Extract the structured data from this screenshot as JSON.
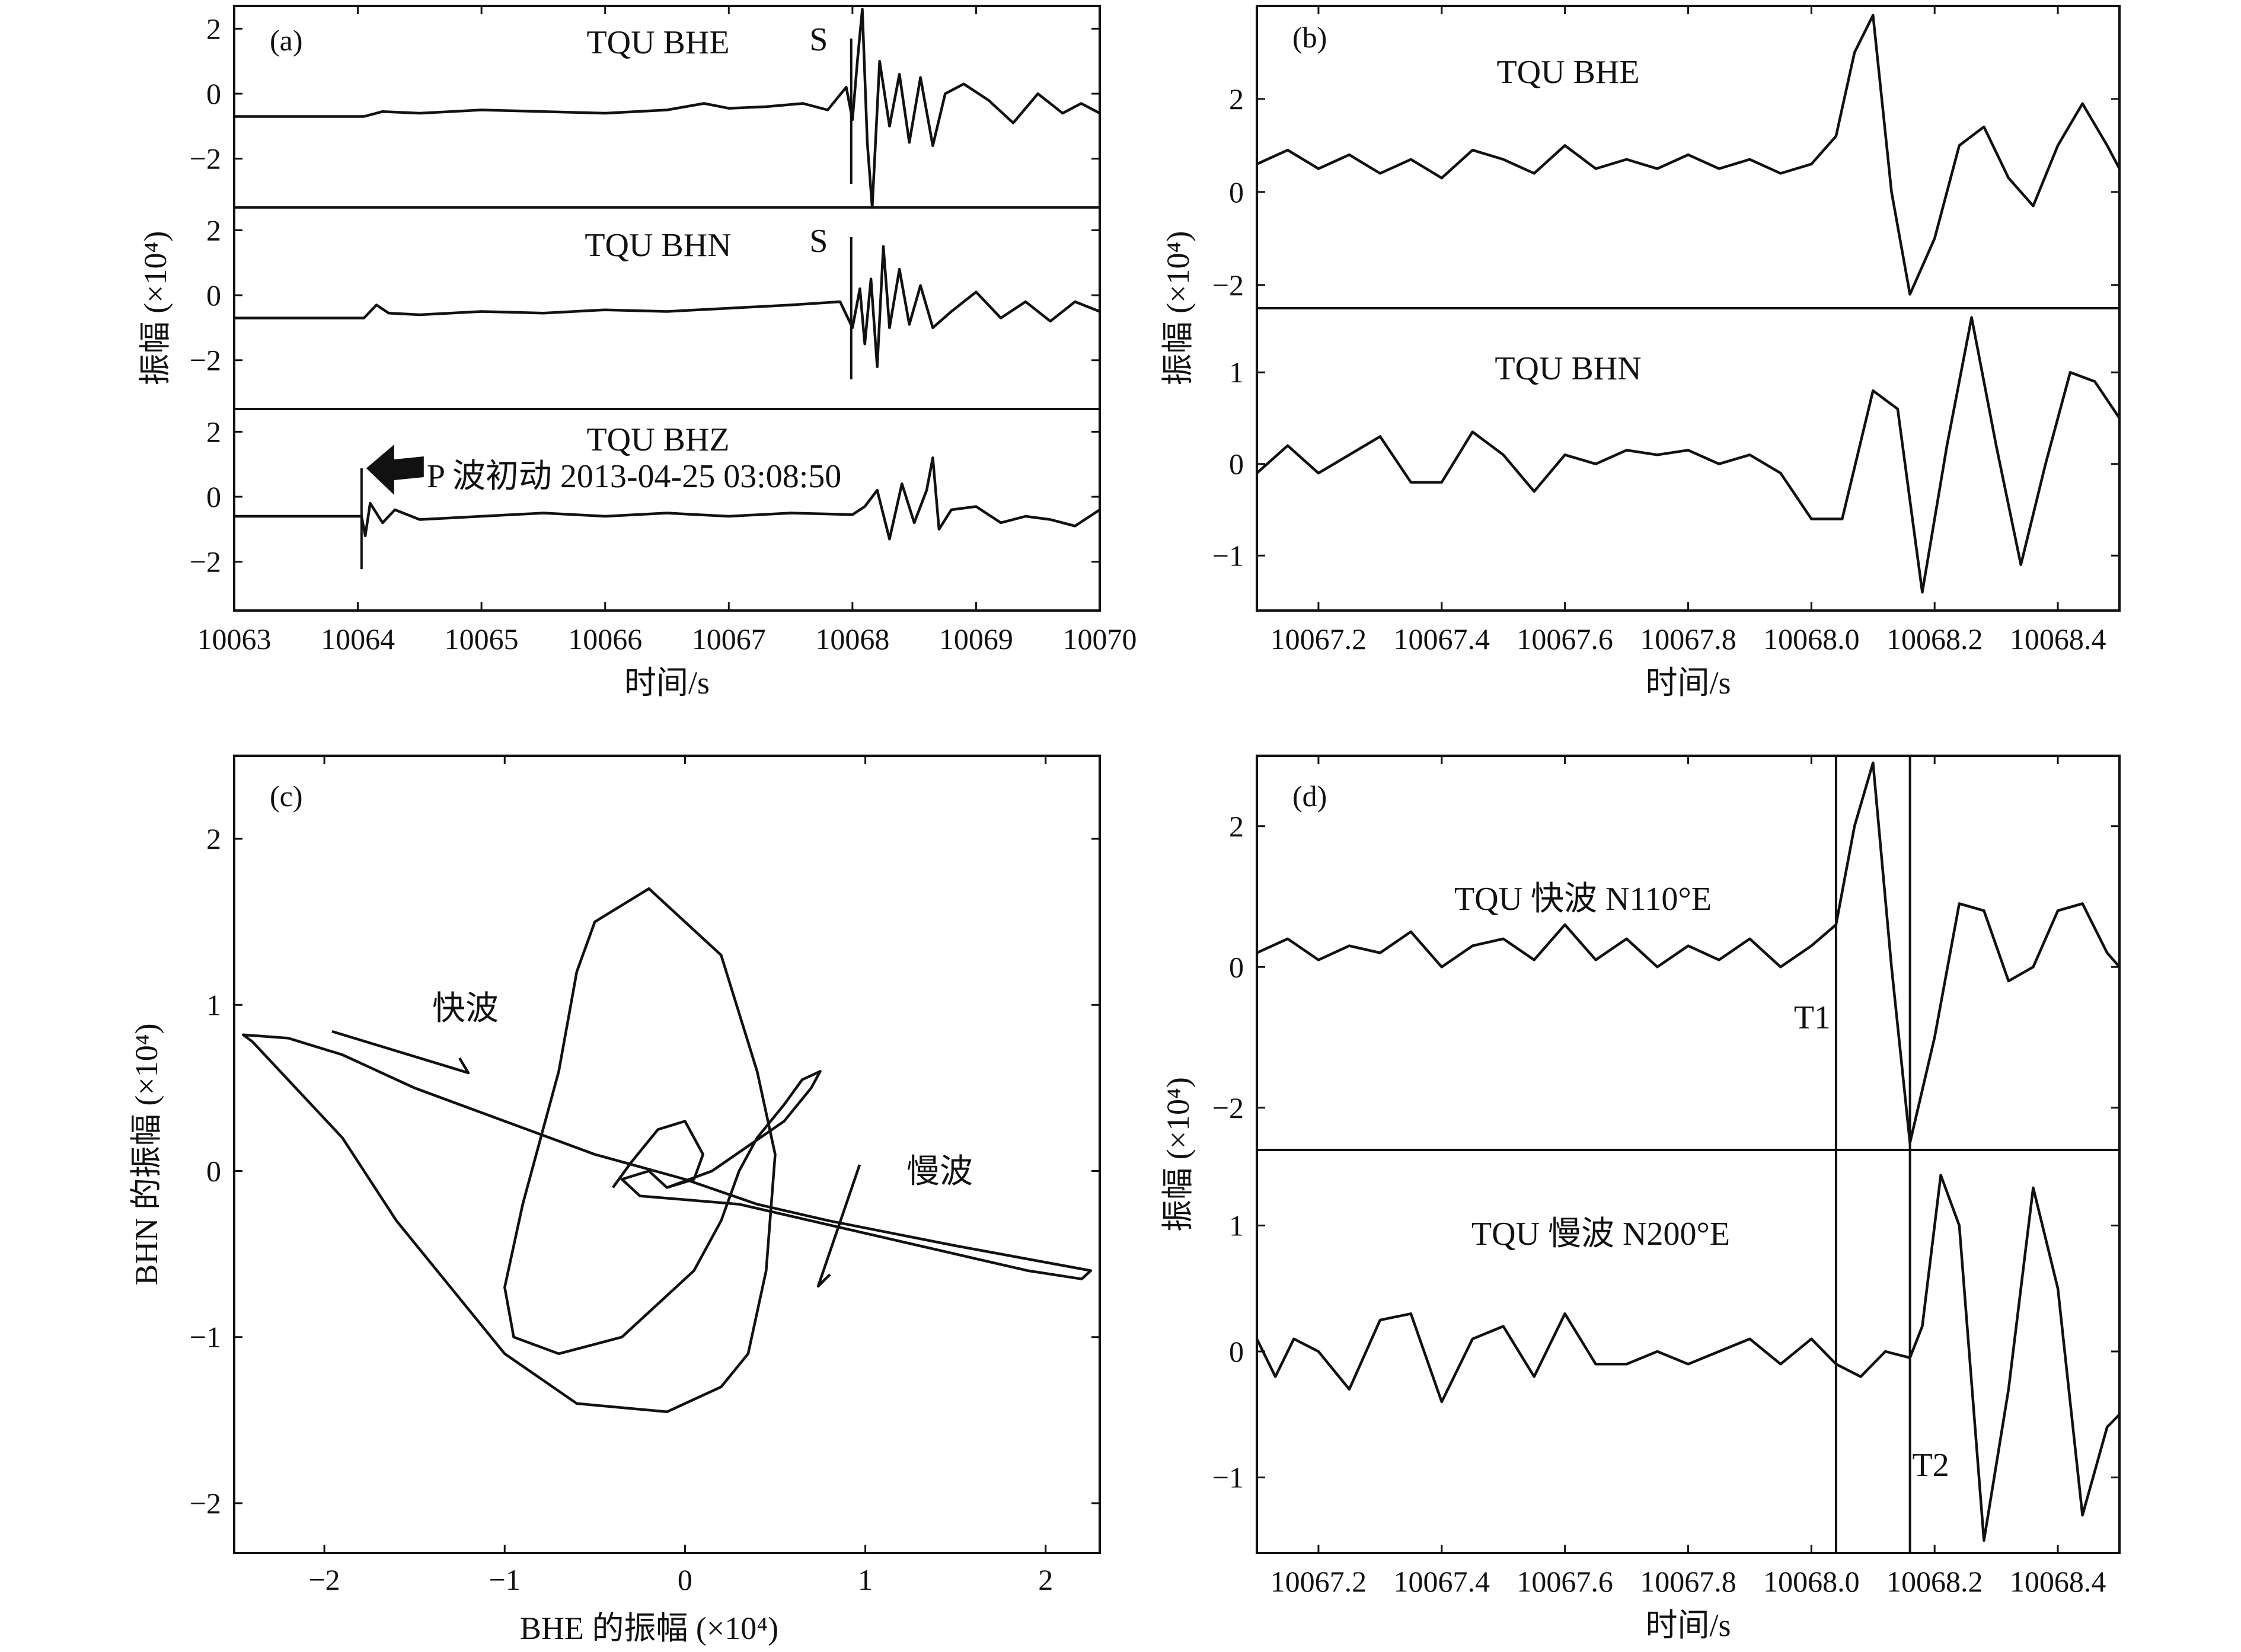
{
  "chart_data": [
    {
      "panel": "(a)",
      "type": "line",
      "xlabel": "时间/s",
      "ylabel": "振幅 (×10⁴)",
      "xlim": [
        10063,
        10070
      ],
      "xticks": [
        "10063",
        "10064",
        "10065",
        "10066",
        "10067",
        "10068",
        "10069",
        "10070"
      ],
      "subplots": [
        {
          "label": "TQU BHE",
          "ylim": [
            -3.5,
            2.7
          ],
          "yticks": [
            "2",
            "0",
            "−2"
          ],
          "marker_label": "S",
          "marker_x": 10067.99,
          "x": [
            10063.0,
            10064.05,
            10064.2,
            10064.5,
            10065.0,
            10065.5,
            10066.0,
            10066.5,
            10066.8,
            10067.0,
            10067.3,
            10067.6,
            10067.8,
            10067.95,
            10068.0,
            10068.04,
            10068.08,
            10068.12,
            10068.16,
            10068.22,
            10068.3,
            10068.38,
            10068.46,
            10068.55,
            10068.65,
            10068.75,
            10068.9,
            10069.1,
            10069.3,
            10069.5,
            10069.7,
            10069.85,
            10070.0
          ],
          "values": [
            -0.7,
            -0.7,
            -0.55,
            -0.6,
            -0.5,
            -0.55,
            -0.6,
            -0.5,
            -0.3,
            -0.45,
            -0.4,
            -0.3,
            -0.5,
            0.2,
            -0.8,
            1.0,
            2.6,
            -1.5,
            -3.5,
            1.0,
            -1.0,
            0.6,
            -1.5,
            0.5,
            -1.6,
            0.0,
            0.3,
            -0.2,
            -0.9,
            0.0,
            -0.6,
            -0.3,
            -0.6
          ]
        },
        {
          "label": "TQU BHN",
          "ylim": [
            -3.5,
            2.7
          ],
          "yticks": [
            "2",
            "0",
            "−2"
          ],
          "marker_label": "S",
          "marker_x": 10067.99,
          "x": [
            10063.0,
            10064.05,
            10064.15,
            10064.25,
            10064.5,
            10065.0,
            10065.5,
            10066.0,
            10066.5,
            10067.0,
            10067.5,
            10067.9,
            10068.0,
            10068.06,
            10068.1,
            10068.15,
            10068.2,
            10068.25,
            10068.3,
            10068.38,
            10068.46,
            10068.55,
            10068.65,
            10068.8,
            10069.0,
            10069.2,
            10069.4,
            10069.6,
            10069.8,
            10070.0
          ],
          "values": [
            -0.7,
            -0.7,
            -0.3,
            -0.55,
            -0.6,
            -0.5,
            -0.55,
            -0.45,
            -0.5,
            -0.4,
            -0.3,
            -0.2,
            -1.0,
            0.2,
            -1.5,
            0.5,
            -2.2,
            1.5,
            -1.0,
            0.8,
            -0.9,
            0.3,
            -1.0,
            -0.5,
            0.1,
            -0.7,
            -0.2,
            -0.8,
            -0.2,
            -0.5
          ]
        },
        {
          "label": "TQU BHZ",
          "ylim": [
            -3.5,
            2.7
          ],
          "yticks": [
            "2",
            "0",
            "−2"
          ],
          "annotation": "P 波初动 2013-04-25 03:08:50",
          "marker_x": 10064.03,
          "x": [
            10063.0,
            10064.03,
            10064.06,
            10064.1,
            10064.2,
            10064.3,
            10064.5,
            10065.0,
            10065.5,
            10066.0,
            10066.5,
            10067.0,
            10067.5,
            10068.0,
            10068.1,
            10068.2,
            10068.3,
            10068.4,
            10068.5,
            10068.6,
            10068.65,
            10068.7,
            10068.8,
            10069.0,
            10069.2,
            10069.4,
            10069.6,
            10069.8,
            10070.0
          ],
          "values": [
            -0.6,
            -0.6,
            -1.2,
            -0.2,
            -0.8,
            -0.4,
            -0.7,
            -0.6,
            -0.5,
            -0.6,
            -0.5,
            -0.6,
            -0.5,
            -0.55,
            -0.3,
            0.2,
            -1.3,
            0.4,
            -0.8,
            0.2,
            1.2,
            -1.0,
            -0.4,
            -0.3,
            -0.8,
            -0.6,
            -0.7,
            -0.9,
            -0.4
          ]
        }
      ]
    },
    {
      "panel": "(b)",
      "type": "line",
      "xlabel": "时间/s",
      "ylabel": "振幅 (×10⁴)",
      "xlim": [
        10067.1,
        10068.5
      ],
      "xticks": [
        "10067.2",
        "10067.4",
        "10067.6",
        "10067.8",
        "10068.0",
        "10068.2",
        "10068.4"
      ],
      "subplots": [
        {
          "label": "TQU BHE",
          "ylim": [
            -2.5,
            4.0
          ],
          "yticks": [
            "2",
            "0",
            "−2"
          ],
          "x": [
            10067.1,
            10067.15,
            10067.2,
            10067.25,
            10067.3,
            10067.35,
            10067.4,
            10067.45,
            10067.5,
            10067.55,
            10067.6,
            10067.65,
            10067.7,
            10067.75,
            10067.8,
            10067.85,
            10067.9,
            10067.95,
            10068.0,
            10068.04,
            10068.07,
            10068.1,
            10068.13,
            10068.16,
            10068.2,
            10068.24,
            10068.28,
            10068.32,
            10068.36,
            10068.4,
            10068.44,
            10068.48,
            10068.5
          ],
          "values": [
            0.6,
            0.9,
            0.5,
            0.8,
            0.4,
            0.7,
            0.3,
            0.9,
            0.7,
            0.4,
            1.0,
            0.5,
            0.7,
            0.5,
            0.8,
            0.5,
            0.7,
            0.4,
            0.6,
            1.2,
            3.0,
            3.8,
            0.0,
            -2.2,
            -1.0,
            1.0,
            1.4,
            0.3,
            -0.3,
            1.0,
            1.9,
            1.0,
            0.5
          ]
        },
        {
          "label": "TQU BHN",
          "ylim": [
            -1.6,
            1.7
          ],
          "yticks": [
            "1",
            "0",
            "−1"
          ],
          "x": [
            10067.1,
            10067.15,
            10067.2,
            10067.25,
            10067.3,
            10067.35,
            10067.4,
            10067.45,
            10067.5,
            10067.55,
            10067.6,
            10067.65,
            10067.7,
            10067.75,
            10067.8,
            10067.85,
            10067.9,
            10067.95,
            10068.0,
            10068.05,
            10068.1,
            10068.14,
            10068.18,
            10068.22,
            10068.26,
            10068.3,
            10068.34,
            10068.38,
            10068.42,
            10068.46,
            10068.5
          ],
          "values": [
            -0.1,
            0.2,
            -0.1,
            0.1,
            0.3,
            -0.2,
            -0.2,
            0.35,
            0.1,
            -0.3,
            0.1,
            0.0,
            0.15,
            0.1,
            0.15,
            0.0,
            0.1,
            -0.1,
            -0.6,
            -0.6,
            0.8,
            0.6,
            -1.4,
            0.2,
            1.6,
            0.2,
            -1.1,
            0.0,
            1.0,
            0.9,
            0.5
          ]
        }
      ]
    },
    {
      "panel": "(c)",
      "type": "scatter",
      "xlabel": "BHE 的振幅 (×10⁴)",
      "ylabel": "BHN 的振幅 (×10⁴)",
      "xlim": [
        -2.5,
        2.3
      ],
      "ylim": [
        -2.3,
        2.5
      ],
      "xticks": [
        "−2",
        "−1",
        "0",
        "1",
        "2"
      ],
      "yticks": [
        "2",
        "1",
        "0",
        "−1",
        "−2"
      ],
      "annotations": [
        "快波",
        "慢波"
      ],
      "x": [
        -0.4,
        -0.3,
        -0.15,
        0.0,
        0.1,
        0.05,
        -0.1,
        -0.2,
        -0.35,
        -0.25,
        0.3,
        0.7,
        1.1,
        1.5,
        1.9,
        2.2,
        2.25,
        1.5,
        0.8,
        0.4,
        0.0,
        -0.5,
        -1.0,
        -1.5,
        -1.9,
        -2.2,
        -2.45,
        -2.4,
        -1.9,
        -1.6,
        -1.3,
        -1.0,
        -0.6,
        -0.1,
        0.2,
        0.35,
        0.45,
        0.5,
        0.4,
        0.2,
        -0.2,
        -0.5,
        -0.6,
        -0.7,
        -0.9,
        -1.0,
        -0.95,
        -0.7,
        -0.35,
        -0.15,
        0.05,
        0.2,
        0.3,
        0.4,
        0.55,
        0.65,
        0.75,
        0.75,
        0.7,
        0.55,
        0.35,
        0.15,
        -0.1
      ],
      "y": [
        -0.1,
        0.05,
        0.25,
        0.3,
        0.1,
        -0.05,
        -0.1,
        0.0,
        -0.05,
        -0.15,
        -0.2,
        -0.3,
        -0.4,
        -0.5,
        -0.6,
        -0.65,
        -0.6,
        -0.45,
        -0.3,
        -0.2,
        -0.05,
        0.1,
        0.3,
        0.5,
        0.7,
        0.8,
        0.82,
        0.78,
        0.2,
        -0.3,
        -0.7,
        -1.1,
        -1.4,
        -1.45,
        -1.3,
        -1.1,
        -0.6,
        0.1,
        0.6,
        1.3,
        1.7,
        1.5,
        1.2,
        0.6,
        -0.2,
        -0.7,
        -1.0,
        -1.1,
        -1.0,
        -0.8,
        -0.6,
        -0.3,
        0.0,
        0.2,
        0.4,
        0.55,
        0.6,
        0.6,
        0.5,
        0.3,
        0.15,
        0.0,
        -0.1
      ]
    },
    {
      "panel": "(d)",
      "type": "line",
      "xlabel": "时间/s",
      "ylabel": "振幅 (×10⁴)",
      "xlim": [
        10067.1,
        10068.5
      ],
      "xticks": [
        "10067.2",
        "10067.4",
        "10067.6",
        "10067.8",
        "10068.0",
        "10068.2",
        "10068.4"
      ],
      "markers": [
        {
          "label": "T1",
          "x": 10068.04
        },
        {
          "label": "T2",
          "x": 10068.16
        }
      ],
      "subplots": [
        {
          "label": "TQU 快波 N110°E",
          "ylim": [
            -2.6,
            3.0
          ],
          "yticks": [
            "2",
            "0",
            "−2"
          ],
          "x": [
            10067.1,
            10067.15,
            10067.2,
            10067.25,
            10067.3,
            10067.35,
            10067.4,
            10067.45,
            10067.5,
            10067.55,
            10067.6,
            10067.65,
            10067.7,
            10067.75,
            10067.8,
            10067.85,
            10067.9,
            10067.95,
            10068.0,
            10068.04,
            10068.07,
            10068.1,
            10068.13,
            10068.16,
            10068.2,
            10068.24,
            10068.28,
            10068.32,
            10068.36,
            10068.4,
            10068.44,
            10068.48,
            10068.5
          ],
          "values": [
            0.2,
            0.4,
            0.1,
            0.3,
            0.2,
            0.5,
            0.0,
            0.3,
            0.4,
            0.1,
            0.6,
            0.1,
            0.4,
            0.0,
            0.3,
            0.1,
            0.4,
            0.0,
            0.3,
            0.6,
            2.0,
            2.9,
            0.0,
            -2.5,
            -1.0,
            0.9,
            0.8,
            -0.2,
            0.0,
            0.8,
            0.9,
            0.2,
            0.0
          ]
        },
        {
          "label": "TQU 慢波 N200°E",
          "ylim": [
            -1.6,
            1.6
          ],
          "yticks": [
            "1",
            "0",
            "−1"
          ],
          "x": [
            10067.1,
            10067.13,
            10067.16,
            10067.2,
            10067.25,
            10067.3,
            10067.35,
            10067.4,
            10067.45,
            10067.5,
            10067.55,
            10067.6,
            10067.65,
            10067.7,
            10067.75,
            10067.8,
            10067.85,
            10067.9,
            10067.95,
            10068.0,
            10068.04,
            10068.08,
            10068.12,
            10068.16,
            10068.18,
            10068.21,
            10068.24,
            10068.28,
            10068.32,
            10068.36,
            10068.4,
            10068.44,
            10068.48,
            10068.5
          ],
          "values": [
            0.1,
            -0.2,
            0.1,
            0.0,
            -0.3,
            0.25,
            0.3,
            -0.4,
            0.1,
            0.2,
            -0.2,
            0.3,
            -0.1,
            -0.1,
            0.0,
            -0.1,
            0.0,
            0.1,
            -0.1,
            0.1,
            -0.1,
            -0.2,
            0.0,
            -0.05,
            0.2,
            1.4,
            1.0,
            -1.5,
            -0.3,
            1.3,
            0.5,
            -1.3,
            -0.6,
            -0.5
          ]
        }
      ]
    }
  ]
}
